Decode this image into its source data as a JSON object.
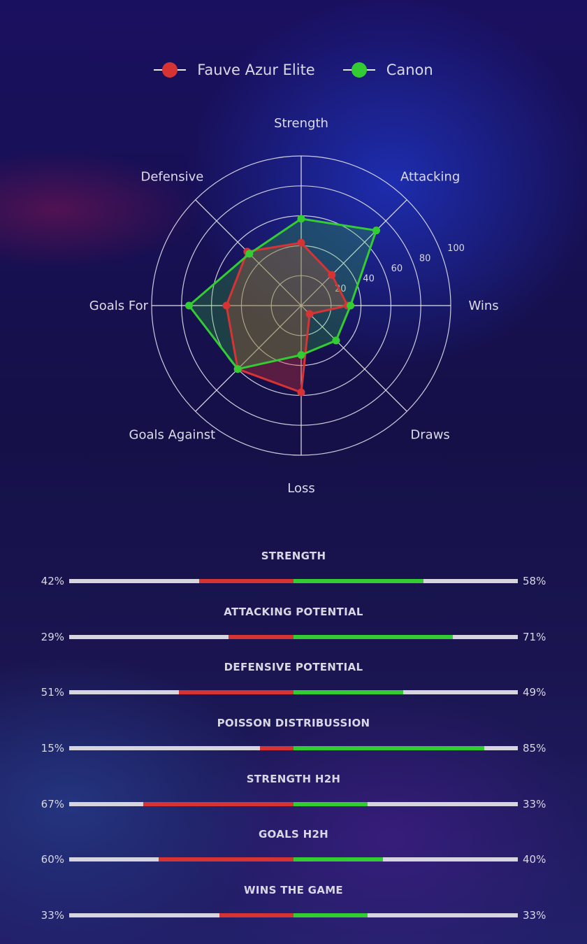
{
  "colors": {
    "team1": "#d63434",
    "team2": "#33cc33",
    "grid": "#e0e0ea",
    "track": "#d6d4de"
  },
  "chart_data": {
    "type": "radar",
    "axes": [
      "Strength",
      "Attacking",
      "Wins",
      "Draws",
      "Loss",
      "Goals Against",
      "Goals For",
      "Defensive"
    ],
    "rlim": [
      0,
      100
    ],
    "r_ticks": [
      "20",
      "40",
      "60",
      "80",
      "100"
    ],
    "legend_position": "top",
    "series": [
      {
        "name": "Fauve Azur Elite",
        "color": "#d63434",
        "values": [
          42,
          29,
          31,
          8,
          58,
          60,
          50,
          51
        ]
      },
      {
        "name": "Canon",
        "color": "#33cc33",
        "values": [
          58,
          71,
          33,
          33,
          33,
          60,
          75,
          49
        ]
      }
    ]
  },
  "comparison": [
    {
      "title": "STRENGTH",
      "left": "42%",
      "right": "58%",
      "left_value": 42,
      "right_value": 58
    },
    {
      "title": "ATTACKING POTENTIAL",
      "left": "29%",
      "right": "71%",
      "left_value": 29,
      "right_value": 71
    },
    {
      "title": "DEFENSIVE POTENTIAL",
      "left": "51%",
      "right": "49%",
      "left_value": 51,
      "right_value": 49
    },
    {
      "title": "POISSON DISTRIBUSSION",
      "left": "15%",
      "right": "85%",
      "left_value": 15,
      "right_value": 85
    },
    {
      "title": "STRENGTH H2H",
      "left": "67%",
      "right": "33%",
      "left_value": 67,
      "right_value": 33
    },
    {
      "title": "GOALS H2H",
      "left": "60%",
      "right": "40%",
      "left_value": 60,
      "right_value": 40
    },
    {
      "title": "WINS THE GAME",
      "left": "33%",
      "right": "33%",
      "left_value": 33,
      "right_value": 33
    }
  ]
}
